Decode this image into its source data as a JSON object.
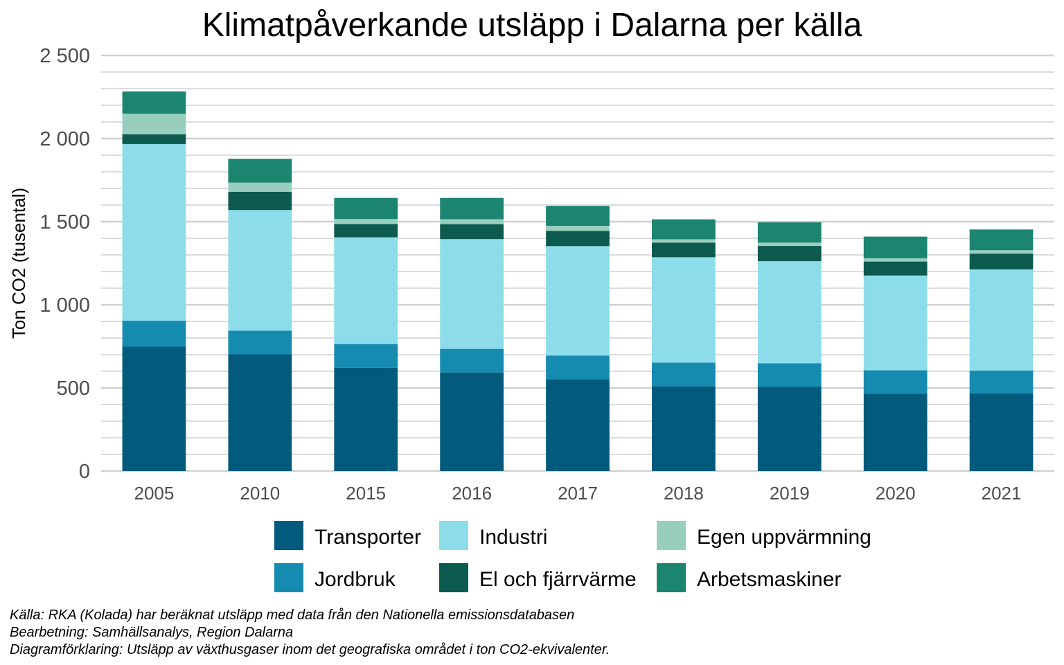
{
  "chart_data": {
    "type": "bar",
    "stacked": true,
    "title": "Klimatpåverkande utsläpp i Dalarna per källa",
    "xlabel": "",
    "ylabel": "Ton CO2 (tusental)",
    "ylim": [
      0,
      2500
    ],
    "yticks": [
      0,
      500,
      1000,
      1500,
      2000,
      2500
    ],
    "ytick_labels": [
      "0",
      "500",
      "1 000",
      "1 500",
      "2 000",
      "2 500"
    ],
    "grid": true,
    "legend_position": "bottom",
    "categories": [
      "2005",
      "2010",
      "2015",
      "2016",
      "2017",
      "2018",
      "2019",
      "2020",
      "2021"
    ],
    "series": [
      {
        "name": "Transporter",
        "color": "#025a7d",
        "values": [
          748,
          702,
          622,
          593,
          553,
          510,
          506,
          466,
          467
        ]
      },
      {
        "name": "Jordbruk",
        "color": "#168bb0",
        "values": [
          157,
          142,
          142,
          142,
          142,
          142,
          142,
          140,
          138
        ]
      },
      {
        "name": "Industri",
        "color": "#8ddcea",
        "values": [
          1062,
          726,
          642,
          660,
          658,
          634,
          614,
          570,
          608
        ]
      },
      {
        "name": "El och fjärrvärme",
        "color": "#0d5a4e",
        "values": [
          58,
          110,
          80,
          90,
          92,
          88,
          92,
          84,
          95
        ]
      },
      {
        "name": "Egen uppvärmning",
        "color": "#97cebe",
        "values": [
          125,
          55,
          30,
          30,
          30,
          20,
          20,
          20,
          20
        ]
      },
      {
        "name": "Arbetsmaskiner",
        "color": "#1b8570",
        "values": [
          133,
          143,
          127,
          128,
          120,
          120,
          122,
          130,
          125
        ]
      }
    ],
    "caption": [
      "Källa:  RKA (Kolada) har beräknat utsläpp med data från den Nationella emissionsdatabasen",
      "Bearbetning: Samhällsanalys, Region Dalarna",
      "Diagramförklaring: Utsläpp av växthusgaser inom det geografiska området i ton CO2-ekvivalenter."
    ]
  }
}
